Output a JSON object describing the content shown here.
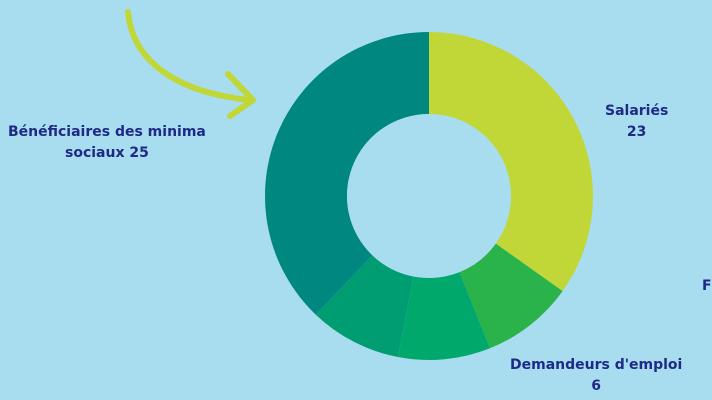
{
  "chart_data": {
    "type": "pie",
    "hole": "donut",
    "categories": [
      "Salariés",
      "Demandeurs d'emploi",
      "",
      "",
      "Bénéficiaires des minima sociaux"
    ],
    "values": [
      23,
      6,
      6,
      6,
      25
    ],
    "colors": [
      "#c1d737",
      "#2ab34b",
      "#00a86b",
      "#009d73",
      "#008880"
    ],
    "labels": [
      {
        "name": "Salariés",
        "value": "23"
      },
      {
        "name": "Demandeurs d'emploi",
        "value": "6"
      },
      {
        "name": "Bénéficiaires des minima",
        "value": "sociaux 25"
      }
    ],
    "partial_label": "F"
  },
  "colors": {
    "background": "#a8dcef",
    "arrow": "#c1d737",
    "label_text": "#1f2a86"
  }
}
